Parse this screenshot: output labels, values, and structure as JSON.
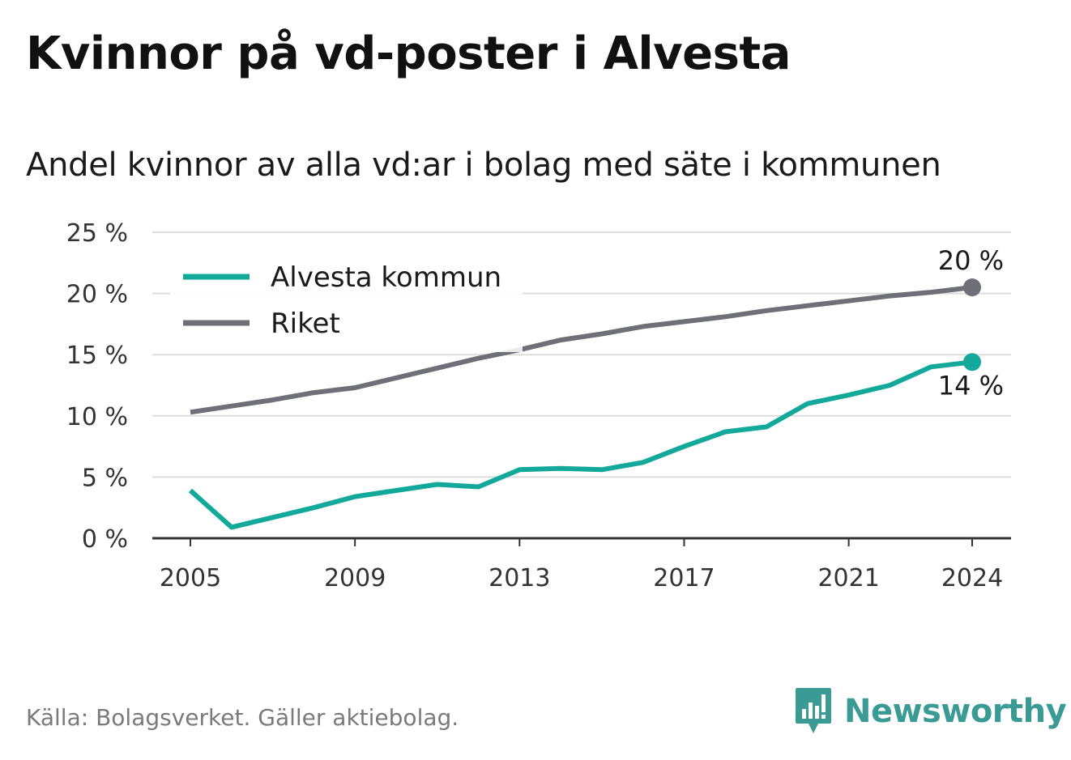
{
  "title": "Kvinnor på vd-poster i Alvesta",
  "subtitle": "Andel kvinnor av alla vd:ar i bolag med säte i kommunen",
  "source": "Källa: Bolagsverket. Gäller aktiebolag.",
  "brand": "Newsworthy",
  "colors": {
    "alvesta": "#12a89a",
    "riket": "#6f6f77",
    "grid": "#dddddd",
    "axis": "#333333",
    "brand": "#3a9a94"
  },
  "chart_data": {
    "type": "line",
    "x": [
      2005,
      2006,
      2007,
      2008,
      2009,
      2010,
      2011,
      2012,
      2013,
      2014,
      2015,
      2016,
      2017,
      2018,
      2019,
      2020,
      2021,
      2022,
      2023,
      2024
    ],
    "series": [
      {
        "name": "Alvesta kommun",
        "color": "#12a89a",
        "values": [
          3.9,
          0.9,
          1.7,
          2.5,
          3.4,
          3.9,
          4.4,
          4.2,
          5.6,
          5.7,
          5.6,
          6.2,
          7.5,
          8.7,
          9.1,
          11.0,
          11.7,
          12.5,
          14.0,
          14.4
        ],
        "end_label": "14 %"
      },
      {
        "name": "Riket",
        "color": "#6f6f77",
        "values": [
          10.3,
          10.8,
          11.3,
          11.9,
          12.3,
          13.1,
          13.9,
          14.7,
          15.4,
          16.2,
          16.7,
          17.3,
          17.7,
          18.1,
          18.6,
          19.0,
          19.4,
          19.8,
          20.1,
          20.5
        ],
        "end_label": "20 %"
      }
    ],
    "ylim": [
      0,
      25
    ],
    "y_ticks": [
      0,
      5,
      10,
      15,
      20,
      25
    ],
    "y_tick_labels": [
      "0 %",
      "5 %",
      "10 %",
      "15 %",
      "20 %",
      "25 %"
    ],
    "x_ticks": [
      2005,
      2009,
      2013,
      2017,
      2021,
      2024
    ],
    "x_tick_labels": [
      "2005",
      "2009",
      "2013",
      "2017",
      "2021",
      "2024"
    ],
    "grid": true,
    "legend_position": "top-left"
  }
}
